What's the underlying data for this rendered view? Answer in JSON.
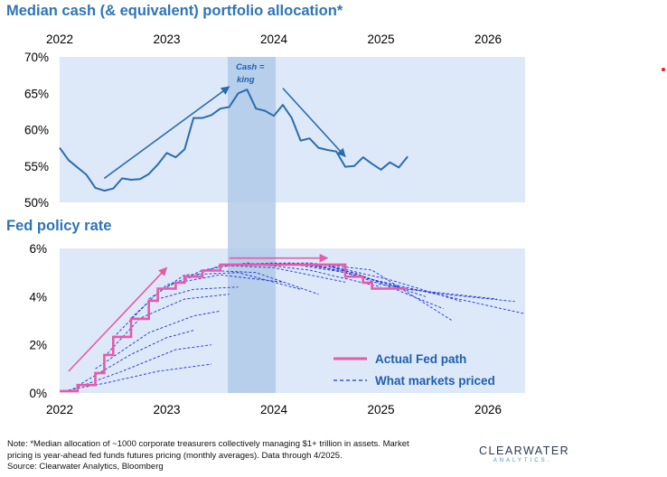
{
  "colors": {
    "panel_bg": "#dde9f8",
    "cash_king_band": "#aac6e6",
    "title": "#2e75b6",
    "cash_line": "#2b6cb0",
    "actual_fed": "#e85aa8",
    "markets_priced": "#2434d8",
    "legend_text": "#1f5fb0"
  },
  "chart_data": [
    {
      "type": "line",
      "title": "Median cash (& equivalent) portfolio allocation*",
      "x_ticks": [
        "2022",
        "2023",
        "2024",
        "2025",
        "2026"
      ],
      "y_ticks": [
        "70%",
        "65%",
        "60%",
        "55%",
        "50%"
      ],
      "ylim": [
        50,
        70
      ],
      "xlim": [
        2022.0,
        2026.4
      ],
      "grid": false,
      "highlight_band": {
        "label": "Cash = king",
        "x_from": "2023-08",
        "x_to": "2024-01"
      },
      "series": [
        {
          "x": [
            "2022-01",
            "2022-02",
            "2022-04",
            "2022-05",
            "2022-06",
            "2022-07",
            "2022-08",
            "2022-09",
            "2022-10",
            "2022-11",
            "2022-12",
            "2023-01",
            "2023-02",
            "2023-03",
            "2023-04",
            "2023-05",
            "2023-06",
            "2023-07",
            "2023-08",
            "2023-09",
            "2023-10",
            "2023-11",
            "2023-12",
            "2024-01",
            "2024-02",
            "2024-03",
            "2024-04",
            "2024-05",
            "2024-06",
            "2024-07",
            "2024-08",
            "2024-09",
            "2024-10",
            "2024-11",
            "2024-12",
            "2025-01",
            "2025-02",
            "2025-03",
            "2025-04"
          ],
          "values": [
            57.5,
            55.8,
            53.8,
            52.0,
            51.6,
            51.9,
            53.3,
            53.1,
            53.2,
            53.9,
            55.2,
            56.8,
            56.2,
            57.3,
            61.6,
            61.6,
            62.0,
            62.9,
            63.1,
            65.0,
            65.5,
            62.9,
            62.6,
            61.9,
            63.4,
            61.6,
            58.5,
            58.8,
            57.5,
            57.2,
            57.0,
            54.9,
            55.0,
            56.2,
            55.3,
            54.5,
            55.5,
            54.8,
            56.3
          ]
        }
      ],
      "trend_arrows": [
        {
          "from": {
            "x": "2022-06",
            "y": 53.3
          },
          "to": {
            "x": "2023-08",
            "y": 65.9
          }
        },
        {
          "from": {
            "x": "2024-02",
            "y": 65.7
          },
          "to": {
            "x": "2024-09",
            "y": 56.3
          }
        }
      ]
    },
    {
      "type": "line",
      "title": "Fed policy rate",
      "x_ticks": [
        "2022",
        "2023",
        "2024",
        "2025",
        "2026"
      ],
      "y_ticks": [
        "6%",
        "4%",
        "2%",
        "0%"
      ],
      "ylim": [
        0,
        6
      ],
      "xlim": [
        2022.0,
        2026.4
      ],
      "grid": false,
      "legend_position": "bottom-right",
      "series": [
        {
          "name": "Actual Fed path",
          "style": "step",
          "steps": [
            {
              "x": "2022-01",
              "y": 0.08
            },
            {
              "x": "2022-03",
              "y": 0.33
            },
            {
              "x": "2022-05",
              "y": 0.83
            },
            {
              "x": "2022-06",
              "y": 1.58
            },
            {
              "x": "2022-07",
              "y": 2.33
            },
            {
              "x": "2022-09",
              "y": 3.08
            },
            {
              "x": "2022-11",
              "y": 3.83
            },
            {
              "x": "2022-12",
              "y": 4.33
            },
            {
              "x": "2023-02",
              "y": 4.58
            },
            {
              "x": "2023-03",
              "y": 4.83
            },
            {
              "x": "2023-05",
              "y": 5.08
            },
            {
              "x": "2023-07",
              "y": 5.33
            },
            {
              "x": "2024-09",
              "y": 4.83
            },
            {
              "x": "2024-11",
              "y": 4.58
            },
            {
              "x": "2024-12",
              "y": 4.33
            },
            {
              "x": "2025-04",
              "y": 4.33
            }
          ]
        },
        {
          "name": "What markets priced",
          "style": "dashed",
          "curves": [
            {
              "x": [
                "2022-01",
                "2022-06",
                "2022-12",
                "2023-06"
              ],
              "values": [
                0.05,
                0.4,
                0.9,
                1.2
              ]
            },
            {
              "x": [
                "2022-02",
                "2022-08",
                "2023-02",
                "2023-06"
              ],
              "values": [
                0.1,
                0.9,
                1.8,
                2.0
              ]
            },
            {
              "x": [
                "2022-03",
                "2022-09",
                "2023-01",
                "2023-04"
              ],
              "values": [
                0.3,
                1.6,
                2.3,
                2.6
              ]
            },
            {
              "x": [
                "2022-05",
                "2022-11",
                "2023-04",
                "2023-07"
              ],
              "values": [
                1.0,
                2.5,
                3.2,
                3.4
              ]
            },
            {
              "x": [
                "2022-06",
                "2022-10",
                "2023-03",
                "2023-08"
              ],
              "values": [
                1.5,
                3.1,
                3.9,
                4.1
              ]
            },
            {
              "x": [
                "2022-07",
                "2022-11",
                "2023-04",
                "2023-09"
              ],
              "values": [
                2.3,
                3.8,
                4.3,
                4.4
              ]
            },
            {
              "x": [
                "2022-09",
                "2023-01",
                "2023-07",
                "2024-02"
              ],
              "values": [
                3.1,
                4.5,
                4.9,
                4.6
              ]
            },
            {
              "x": [
                "2022-11",
                "2023-03",
                "2023-09",
                "2024-04"
              ],
              "values": [
                3.9,
                4.9,
                5.0,
                4.3
              ]
            },
            {
              "x": [
                "2023-01",
                "2023-05",
                "2023-11",
                "2024-06"
              ],
              "values": [
                4.4,
                5.1,
                5.0,
                4.1
              ]
            },
            {
              "x": [
                "2023-03",
                "2023-07",
                "2024-01",
                "2024-09"
              ],
              "values": [
                4.7,
                5.3,
                5.2,
                4.6
              ]
            },
            {
              "x": [
                "2023-05",
                "2023-10",
                "2024-05",
                "2025-01"
              ],
              "values": [
                5.1,
                5.4,
                5.1,
                4.4
              ]
            },
            {
              "x": [
                "2023-07",
                "2024-01",
                "2024-08",
                "2025-06"
              ],
              "values": [
                5.3,
                5.4,
                5.2,
                4.0
              ]
            },
            {
              "x": [
                "2023-09",
                "2024-03",
                "2024-10",
                "2025-08"
              ],
              "values": [
                5.35,
                5.4,
                5.0,
                3.5
              ]
            },
            {
              "x": [
                "2023-11",
                "2024-05",
                "2024-12",
                "2025-09"
              ],
              "values": [
                5.35,
                5.4,
                5.1,
                3.0
              ]
            },
            {
              "x": [
                "2024-01",
                "2024-07",
                "2025-02",
                "2025-10"
              ],
              "values": [
                5.35,
                5.3,
                4.7,
                3.8
              ]
            },
            {
              "x": [
                "2024-03",
                "2024-09",
                "2025-04",
                "2026-02"
              ],
              "values": [
                5.35,
                5.0,
                4.3,
                3.9
              ]
            },
            {
              "x": [
                "2024-05",
                "2024-11",
                "2025-06",
                "2026-05"
              ],
              "values": [
                5.35,
                4.8,
                4.2,
                3.3
              ]
            },
            {
              "x": [
                "2024-07",
                "2025-01",
                "2025-08",
                "2026-04"
              ],
              "values": [
                5.3,
                4.5,
                4.1,
                3.8
              ]
            }
          ]
        }
      ],
      "trend_arrows": [
        {
          "from": {
            "x": "2022-02",
            "y": 0.9
          },
          "to": {
            "x": "2023-01",
            "y": 5.2
          }
        },
        {
          "from": {
            "x": "2023-08",
            "y": 5.6
          },
          "to": {
            "x": "2024-07",
            "y": 5.6
          }
        }
      ],
      "highlight_band": {
        "x_from": "2023-08",
        "x_to": "2024-01"
      }
    }
  ],
  "text": {
    "top_title": "Median cash (& equivalent) portfolio allocation*",
    "bottom_title": "Fed policy rate",
    "band_label_line1": "Cash =",
    "band_label_line2": "king",
    "legend_actual": "Actual Fed path",
    "legend_markets": "What markets priced",
    "note_line1": "Note: *Median allocation of ~1000 corporate treasurers collectively managing $1+ trillion in assets.  Market",
    "note_line2": "pricing is year-ahead fed funds futures pricing (monthly averages). Data through 4/2025.",
    "note_line3": "Source: Clearwater Analytics, Bloomberg",
    "logo_main": "CLEARWATER",
    "logo_sub": "ANALYTICS."
  }
}
